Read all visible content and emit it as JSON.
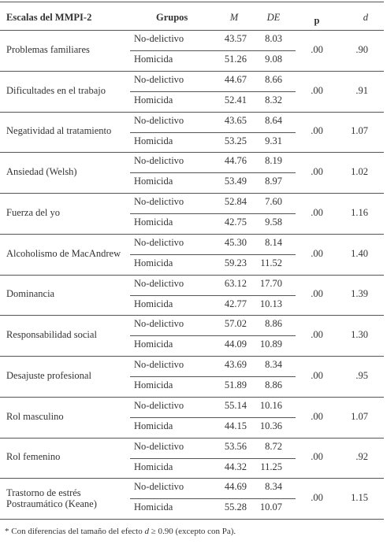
{
  "header": [
    "Escalas del MMPI-2",
    "Grupos",
    "M",
    "DE",
    "p",
    "d"
  ],
  "rows": [
    {
      "scale": "Problemas familiares",
      "groups": [
        {
          "name": "No-delictivo",
          "M": "43.57",
          "DE": "8.03"
        },
        {
          "name": "Homicida",
          "M": "51.26",
          "DE": "9.08"
        }
      ],
      "p": ".00",
      "d": ".90"
    },
    {
      "scale": "Dificultades en el trabajo",
      "groups": [
        {
          "name": "No-delictivo",
          "M": "44.67",
          "DE": "8.66"
        },
        {
          "name": "Homicida",
          "M": "52.41",
          "DE": "8.32"
        }
      ],
      "p": ".00",
      "d": ".91"
    },
    {
      "scale": "Negatividad al tratamiento",
      "groups": [
        {
          "name": "No-delictivo",
          "M": "43.65",
          "DE": "8.64"
        },
        {
          "name": "Homicida",
          "M": "53.25",
          "DE": "9.31"
        }
      ],
      "p": ".00",
      "d": "1.07"
    },
    {
      "scale": "Ansiedad (Welsh)",
      "groups": [
        {
          "name": "No-delictivo",
          "M": "44.76",
          "DE": "8.19"
        },
        {
          "name": "Homicida",
          "M": "53.49",
          "DE": "8.97"
        }
      ],
      "p": ".00",
      "d": "1.02"
    },
    {
      "scale": "Fuerza del yo",
      "groups": [
        {
          "name": "No-delictivo",
          "M": "52.84",
          "DE": "7.60"
        },
        {
          "name": "Homicida",
          "M": "42.75",
          "DE": "9.58"
        }
      ],
      "p": ".00",
      "d": "1.16"
    },
    {
      "scale": "Alcoholismo de MacAndrew",
      "groups": [
        {
          "name": "No-delictivo",
          "M": "45.30",
          "DE": "8.14"
        },
        {
          "name": "Homicida",
          "M": "59.23",
          "DE": "11.52"
        }
      ],
      "p": ".00",
      "d": "1.40"
    },
    {
      "scale": "Dominancia",
      "groups": [
        {
          "name": "No-delictivo",
          "M": "63.12",
          "DE": "17.70"
        },
        {
          "name": "Homicida",
          "M": "42.77",
          "DE": "10.13"
        }
      ],
      "p": ".00",
      "d": "1.39"
    },
    {
      "scale": "Responsabilidad social",
      "groups": [
        {
          "name": "No-delictivo",
          "M": "57.02",
          "DE": "8.86"
        },
        {
          "name": "Homicida",
          "M": "44.09",
          "DE": "10.89"
        }
      ],
      "p": ".00",
      "d": "1.30"
    },
    {
      "scale": "Desajuste profesional",
      "groups": [
        {
          "name": "No-delictivo",
          "M": "43.69",
          "DE": "8.34"
        },
        {
          "name": "Homicida",
          "M": "51.89",
          "DE": "8.86"
        }
      ],
      "p": ".00",
      "d": ".95"
    },
    {
      "scale": "Rol masculino",
      "groups": [
        {
          "name": "No-delictivo",
          "M": "55.14",
          "DE": "10.16"
        },
        {
          "name": "Homicida",
          "M": "44.15",
          "DE": "10.36"
        }
      ],
      "p": ".00",
      "d": "1.07"
    },
    {
      "scale": "Rol femenino",
      "groups": [
        {
          "name": "No-delictivo",
          "M": "53.56",
          "DE": "8.72"
        },
        {
          "name": "Homicida",
          "M": "44.32",
          "DE": "11.25"
        }
      ],
      "p": ".00",
      "d": ".92"
    },
    {
      "scale": "Trastorno de estrés Postraumático (Keane)",
      "groups": [
        {
          "name": "No-delictivo",
          "M": "44.69",
          "DE": "8.34"
        },
        {
          "name": "Homicida",
          "M": "55.28",
          "DE": "10.07"
        }
      ],
      "p": ".00",
      "d": "1.15"
    }
  ],
  "footnote": [
    "* Con diferencias del tamaño del efecto ",
    "d",
    " ≥ 0.90 (excepto con Pa)."
  ]
}
